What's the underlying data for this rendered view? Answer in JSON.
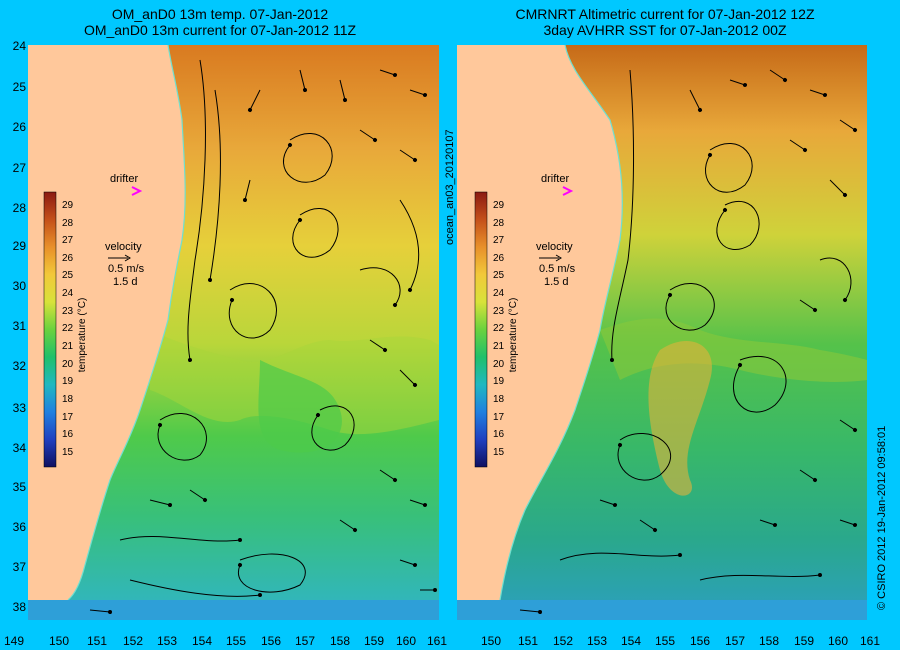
{
  "left_panel": {
    "title_line1": "OM_anD0 13m temp. 07-Jan-2012",
    "title_line2": "OM_anD0 13m current for 07-Jan-2012 11Z"
  },
  "right_panel": {
    "title_line1": "CMRNRT Altimetric current for 07-Jan-2012 12Z",
    "title_line2": "3day AVHRR SST for 07-Jan-2012 00Z"
  },
  "side_label": "ocean_an03_20120107",
  "copyright": "© CSIRO 2012   19-Jan-2012 09:58:01",
  "lat_ticks": [
    "24",
    "25",
    "26",
    "27",
    "28",
    "29",
    "30",
    "31",
    "32",
    "33",
    "34",
    "35",
    "36",
    "37",
    "38"
  ],
  "lon_ticks_left": [
    "149",
    "150",
    "151",
    "152",
    "153",
    "154",
    "155",
    "156",
    "157",
    "158",
    "159",
    "160",
    "161"
  ],
  "lon_ticks_right": [
    "150",
    "151",
    "152",
    "153",
    "154",
    "155",
    "156",
    "157",
    "158",
    "159",
    "160",
    "161"
  ],
  "legend": {
    "drifter_label": "drifter",
    "velocity_label": "velocity",
    "velocity_scale": "0.5 m/s",
    "velocity_time": "1.5 d",
    "colorbar_title": "temperature (°C)",
    "colorbar_ticks": [
      "29",
      "28",
      "27",
      "26",
      "25",
      "24",
      "23",
      "22",
      "21",
      "20",
      "19",
      "18",
      "17",
      "16",
      "15"
    ]
  },
  "colors": {
    "background": "#00c8ff",
    "land": "#ffc89b",
    "warm": "#e07a1e",
    "cool": "#3fc46a",
    "drifter_marker": "#ff00ff",
    "coastline_contour": "#6fe0d0"
  }
}
